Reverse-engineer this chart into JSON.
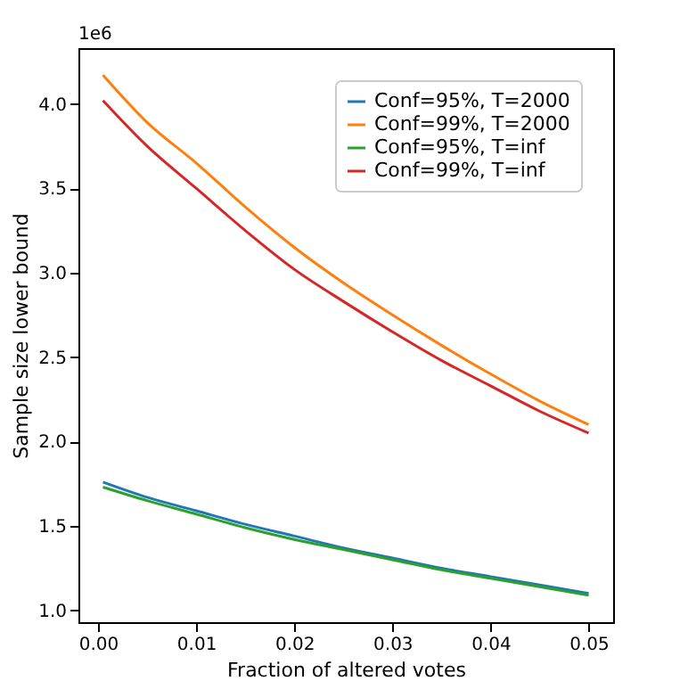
{
  "chart_data": {
    "type": "line",
    "xlabel": "Fraction of altered votes",
    "ylabel": "Sample size lower bound",
    "annotations": [
      "1e6"
    ],
    "x": [
      0.0005,
      0.005,
      0.01,
      0.015,
      0.02,
      0.025,
      0.03,
      0.035,
      0.04,
      0.045,
      0.05
    ],
    "series": [
      {
        "name": "Conf=95%, T=2000",
        "color": "#1f77b4",
        "values": [
          1.76,
          1.67,
          1.59,
          1.51,
          1.44,
          1.37,
          1.31,
          1.25,
          1.2,
          1.15,
          1.1
        ]
      },
      {
        "name": "Conf=99%, T=2000",
        "color": "#ff7f0e",
        "values": [
          4.17,
          3.89,
          3.65,
          3.39,
          3.15,
          2.94,
          2.75,
          2.57,
          2.4,
          2.24,
          2.1
        ]
      },
      {
        "name": "Conf=95%, T=inf",
        "color": "#2ca02c",
        "values": [
          1.73,
          1.65,
          1.57,
          1.49,
          1.42,
          1.36,
          1.3,
          1.24,
          1.19,
          1.14,
          1.09
        ]
      },
      {
        "name": "Conf=99%, T=inf",
        "color": "#d62728",
        "values": [
          4.02,
          3.75,
          3.5,
          3.25,
          3.02,
          2.83,
          2.65,
          2.48,
          2.33,
          2.18,
          2.05
        ]
      }
    ],
    "xlim": [
      -0.002,
      0.0525
    ],
    "xticks": [
      {
        "value": 0,
        "label": "0.00"
      },
      0.01,
      0.02,
      0.03,
      0.04,
      0.05
    ],
    "ylim": [
      0.93,
      4.33
    ],
    "yticks": [
      {
        "value": 1,
        "label": "1.0"
      },
      1.5,
      {
        "value": 2,
        "label": "2.0"
      },
      2.5,
      {
        "value": 3,
        "label": "3.0"
      },
      3.5,
      {
        "value": 4,
        "label": "4.0"
      }
    ],
    "legend": "top right",
    "grid": false,
    "marker": "none",
    "line_style": "solid"
  }
}
